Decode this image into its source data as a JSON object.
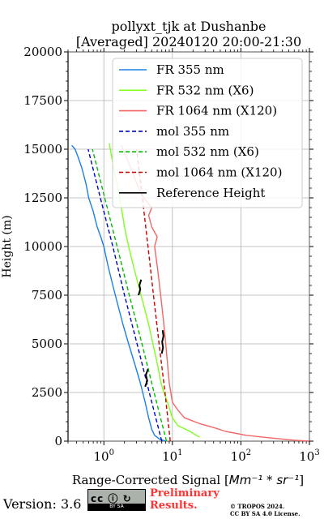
{
  "title_line1": "pollyxt_tjk at Dushanbe",
  "title_line2": "[Averaged] 20240120 20:00-21:30",
  "footer": {
    "version": "Version: 3.6",
    "prelim_line1": "Preliminary",
    "prelim_line2": "Results.",
    "copyright_line1": "© TROPOS 2024.",
    "copyright_line2": "CC BY SA 4.0 License.",
    "badge_icons": "cc ⓘ ↻",
    "badge_bar": "BY    SA"
  },
  "chart_data": {
    "type": "line",
    "ylabel": "Height (m)",
    "xlabel_main": "Range-Corrected Signal [",
    "xlabel_math": "Mm⁻¹ * sr⁻¹",
    "xlabel_close": "]",
    "xscale": "log",
    "xlim": [
      0.3,
      1000
    ],
    "ylim": [
      0,
      20000
    ],
    "yticks": [
      0,
      2500,
      5000,
      7500,
      10000,
      12500,
      15000,
      17500,
      20000
    ],
    "ytick_labels": [
      "0",
      "2500",
      "5000",
      "7500",
      "10000",
      "12500",
      "15000",
      "17500",
      "20000"
    ],
    "xticks": [
      1,
      10,
      100,
      1000
    ],
    "xtick_labels": [
      {
        "base": "10",
        "exp": "0"
      },
      {
        "base": "10",
        "exp": "1"
      },
      {
        "base": "10",
        "exp": "2"
      },
      {
        "base": "10",
        "exp": "3"
      }
    ],
    "grid": true,
    "legend_position": "upper-right",
    "colors": {
      "fr355": "#1a80e6",
      "fr532": "#80ff1a",
      "fr1064": "#f26666",
      "mol355": "#0000cc",
      "mol532": "#00bb00",
      "mol1064": "#cc0000",
      "ref": "#000000"
    },
    "series": [
      {
        "name": "FR 355 nm",
        "key": "fr355",
        "style": "solid",
        "points": [
          [
            8.0,
            0
          ],
          [
            6.5,
            100
          ],
          [
            5.5,
            300
          ],
          [
            5.0,
            600
          ],
          [
            4.5,
            1200
          ],
          [
            4.0,
            2000
          ],
          [
            3.4,
            3000
          ],
          [
            2.8,
            4000
          ],
          [
            2.3,
            5000
          ],
          [
            1.9,
            6000
          ],
          [
            1.6,
            7000
          ],
          [
            1.35,
            8000
          ],
          [
            1.15,
            9000
          ],
          [
            1.0,
            10000
          ],
          [
            0.9,
            10500
          ],
          [
            0.8,
            11000
          ],
          [
            0.7,
            11800
          ],
          [
            0.6,
            12500
          ],
          [
            0.55,
            13200
          ],
          [
            0.48,
            14000
          ],
          [
            0.42,
            14600
          ],
          [
            0.38,
            15000
          ],
          [
            0.34,
            15200
          ]
        ]
      },
      {
        "name": "FR 532 nm (X6)",
        "key": "fr532",
        "style": "solid",
        "points": [
          [
            25,
            200
          ],
          [
            18,
            500
          ],
          [
            12,
            800
          ],
          [
            10,
            1200
          ],
          [
            8.5,
            2000
          ],
          [
            7.5,
            2500
          ],
          [
            6.8,
            3000
          ],
          [
            6.0,
            4000
          ],
          [
            5.2,
            5000
          ],
          [
            4.5,
            6000
          ],
          [
            3.8,
            7000
          ],
          [
            3.2,
            8000
          ],
          [
            2.7,
            9000
          ],
          [
            2.3,
            10000
          ],
          [
            2.0,
            11000
          ],
          [
            1.8,
            12000
          ],
          [
            1.6,
            13000
          ],
          [
            1.4,
            14000
          ],
          [
            1.3,
            14600
          ],
          [
            1.2,
            15300
          ]
        ]
      },
      {
        "name": "FR 1064 nm (X120)",
        "key": "fr1064",
        "style": "solid",
        "points": [
          [
            1000,
            0
          ],
          [
            600,
            50
          ],
          [
            300,
            150
          ],
          [
            120,
            300
          ],
          [
            60,
            500
          ],
          [
            40,
            700
          ],
          [
            25,
            900
          ],
          [
            15,
            1200
          ],
          [
            12,
            1600
          ],
          [
            10,
            2000
          ],
          [
            9.0,
            3000
          ],
          [
            8.5,
            4000
          ],
          [
            8.0,
            5000
          ],
          [
            7.5,
            6000
          ],
          [
            7.0,
            7000
          ],
          [
            6.5,
            8000
          ],
          [
            6.0,
            9000
          ],
          [
            5.5,
            10000
          ],
          [
            6.0,
            10500
          ],
          [
            5.0,
            11000
          ],
          [
            4.5,
            11600
          ],
          [
            5.0,
            12000
          ],
          [
            3.8,
            12500
          ],
          [
            3.2,
            13000
          ],
          [
            2.5,
            14000
          ],
          [
            2.0,
            14800
          ],
          [
            1.8,
            15200
          ]
        ]
      },
      {
        "name": "mol 355 nm",
        "key": "mol355",
        "style": "dashed",
        "points": [
          [
            7.0,
            0
          ],
          [
            4.6,
            2500
          ],
          [
            3.05,
            5000
          ],
          [
            2.0,
            7500
          ],
          [
            1.35,
            10000
          ],
          [
            0.89,
            12500
          ],
          [
            0.59,
            15000
          ]
        ]
      },
      {
        "name": "mol 532 nm (X6)",
        "key": "mol532",
        "style": "dashed",
        "points": [
          [
            8.2,
            0
          ],
          [
            5.4,
            2500
          ],
          [
            3.6,
            5000
          ],
          [
            2.35,
            7500
          ],
          [
            1.56,
            10000
          ],
          [
            1.03,
            12500
          ],
          [
            0.68,
            15000
          ]
        ]
      },
      {
        "name": "mol 1064 nm (X120)",
        "key": "mol1064",
        "style": "dashed",
        "points": [
          [
            9.3,
            0
          ],
          [
            7.8,
            2500
          ],
          [
            6.4,
            5000
          ],
          [
            5.3,
            7500
          ],
          [
            4.4,
            10000
          ],
          [
            3.65,
            12500
          ],
          [
            3.0,
            15000
          ]
        ]
      },
      {
        "name": "Reference Height",
        "key": "ref",
        "style": "solid",
        "segments": [
          [
            [
              3.2,
              7500
            ],
            [
              3.4,
              7800
            ],
            [
              3.3,
              8000
            ],
            [
              3.5,
              8300
            ]
          ],
          [
            [
              7.0,
              4500
            ],
            [
              7.3,
              4800
            ],
            [
              7.1,
              5100
            ],
            [
              7.4,
              5400
            ],
            [
              7.2,
              5700
            ]
          ],
          [
            [
              4.0,
              2800
            ],
            [
              4.3,
              3100
            ],
            [
              4.1,
              3400
            ],
            [
              4.4,
              3700
            ]
          ]
        ]
      }
    ]
  }
}
